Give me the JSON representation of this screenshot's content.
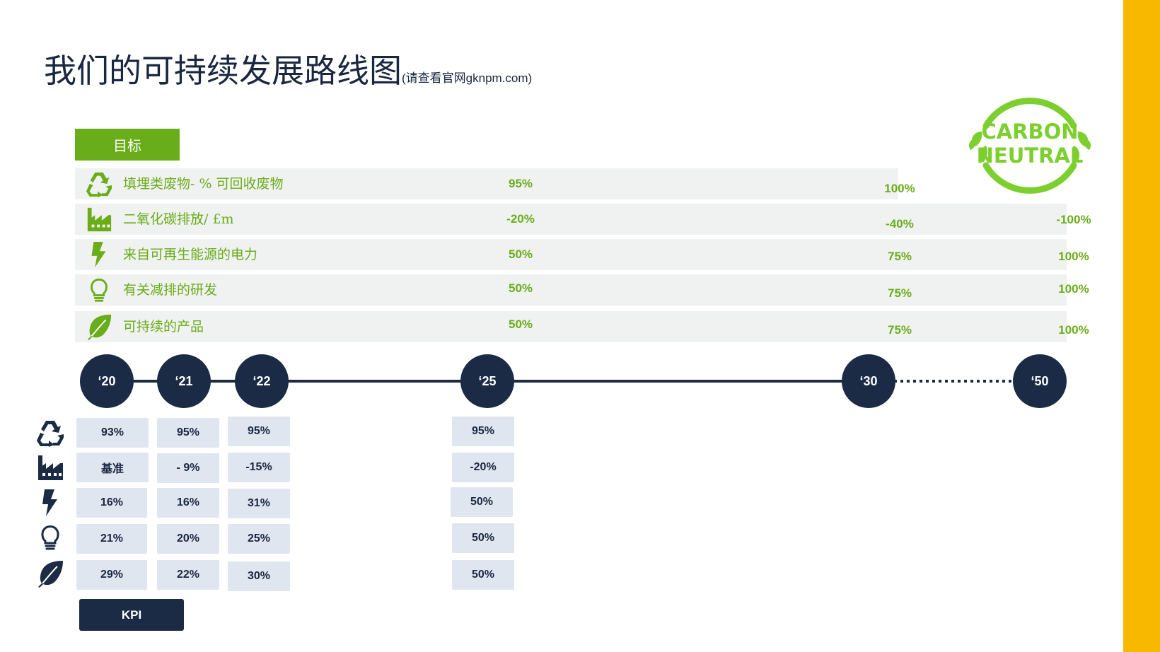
{
  "title": "我们的可持续发展路线图",
  "subtitle": "(请查看官网gknpm.com)",
  "colors": {
    "green": "#6aad1a",
    "navy": "#1b2b45",
    "yellow": "#f9b800",
    "row_bg": "#f0f1f1",
    "cell_bg": "#dfe6f0",
    "badge_green": "#7ccf2e"
  },
  "targets": {
    "label": "目标",
    "rows": [
      {
        "icon": "recycle-icon",
        "label": "填埋类废物- % 可回收废物",
        "v25": "95%",
        "v30": "100%",
        "v50": ""
      },
      {
        "icon": "factory-icon",
        "label": "二氧化碳排放/ £m",
        "v25": "-20%",
        "v30": "-40%",
        "v50": "-100%"
      },
      {
        "icon": "lightning-icon",
        "label": "来自可再生能源的电力",
        "v25": "50%",
        "v30": "75%",
        "v50": "100%"
      },
      {
        "icon": "lightbulb-icon",
        "label": "有关减排的研发",
        "v25": "50%",
        "v30": "75%",
        "v50": "100%"
      },
      {
        "icon": "leaf-icon",
        "label": "可持续的产品",
        "v25": "50%",
        "v30": "75%",
        "v50": "100%"
      }
    ]
  },
  "timeline": {
    "years": [
      "‘20",
      "‘21",
      "‘22",
      "‘25",
      "‘30",
      "‘50"
    ]
  },
  "kpi": {
    "label": "KPI",
    "rows": [
      {
        "icon": "recycle-icon",
        "values": [
          "93%",
          "95%",
          "95%",
          "95%"
        ]
      },
      {
        "icon": "factory-icon",
        "values": [
          "基准",
          "- 9%",
          "-15%",
          "-20%"
        ]
      },
      {
        "icon": "lightning-icon",
        "values": [
          "16%",
          "16%",
          "31%",
          "50%"
        ]
      },
      {
        "icon": "lightbulb-icon",
        "values": [
          "21%",
          "20%",
          "25%",
          "50%"
        ]
      },
      {
        "icon": "leaf-icon",
        "values": [
          "29%",
          "22%",
          "30%",
          "50%"
        ]
      }
    ]
  },
  "badge": {
    "line1": "CARBON",
    "line2": "NEUTRAL",
    "icon": "carbon-neutral-badge-icon"
  }
}
